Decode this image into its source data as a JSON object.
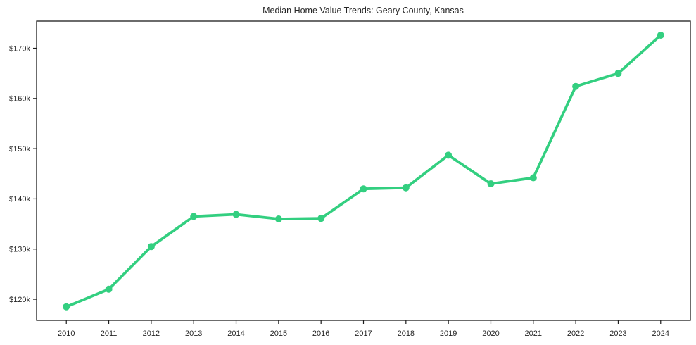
{
  "chart_data": {
    "type": "line",
    "title": "Median Home Value Trends: Geary County, Kansas",
    "xlabel": "",
    "ylabel": "",
    "x": [
      2010,
      2011,
      2012,
      2013,
      2014,
      2015,
      2016,
      2017,
      2018,
      2019,
      2020,
      2021,
      2022,
      2023,
      2024
    ],
    "series": [
      {
        "name": "Median Home Value",
        "values": [
          118500,
          122000,
          130500,
          136500,
          136900,
          136000,
          136100,
          142000,
          142200,
          148700,
          143000,
          144200,
          162400,
          165000,
          172600
        ]
      }
    ],
    "xlim": [
      2009.3,
      2024.7
    ],
    "ylim": [
      115800,
      175400
    ],
    "yticks": [
      120000,
      130000,
      140000,
      150000,
      160000,
      170000
    ],
    "ytick_labels": [
      "$120k",
      "$130k",
      "$140k",
      "$150k",
      "$160k",
      "$170k"
    ],
    "xtick_labels": [
      "2010",
      "2011",
      "2012",
      "2013",
      "2014",
      "2015",
      "2016",
      "2017",
      "2018",
      "2019",
      "2020",
      "2021",
      "2022",
      "2023",
      "2024"
    ],
    "grid": false,
    "legend": null,
    "line_color": "#33cf80",
    "marker": "circle",
    "line_width": 3.8,
    "marker_radius": 5,
    "axis_color": "#1c1c1c",
    "text_color": "#262626",
    "background_color": "#ffffff"
  }
}
